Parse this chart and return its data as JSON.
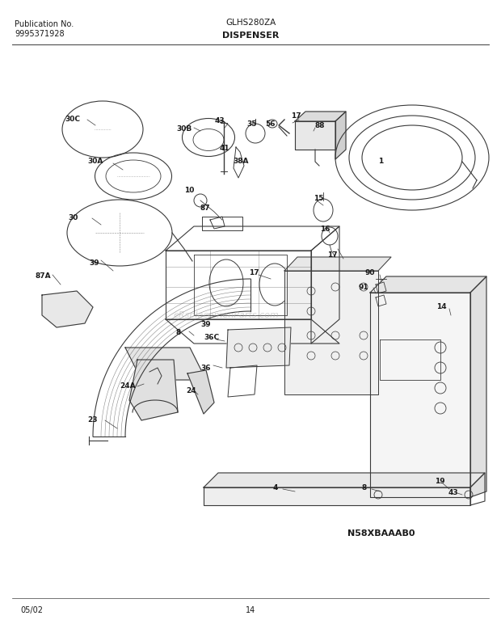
{
  "title_left_line1": "Publication No.",
  "title_left_line2": "9995371928",
  "title_center_top": "GLHS280ZA",
  "title_center_bottom": "DISPENSER",
  "bottom_left": "05/02",
  "bottom_center": "14",
  "diagram_code": "N58XBAAAB0",
  "bg_color": "#ffffff",
  "line_color": "#3a3a3a",
  "text_color": "#1a1a1a",
  "watermark": "eRsplacemenParts.com",
  "figsize": [
    6.2,
    7.93
  ],
  "dpi": 100
}
